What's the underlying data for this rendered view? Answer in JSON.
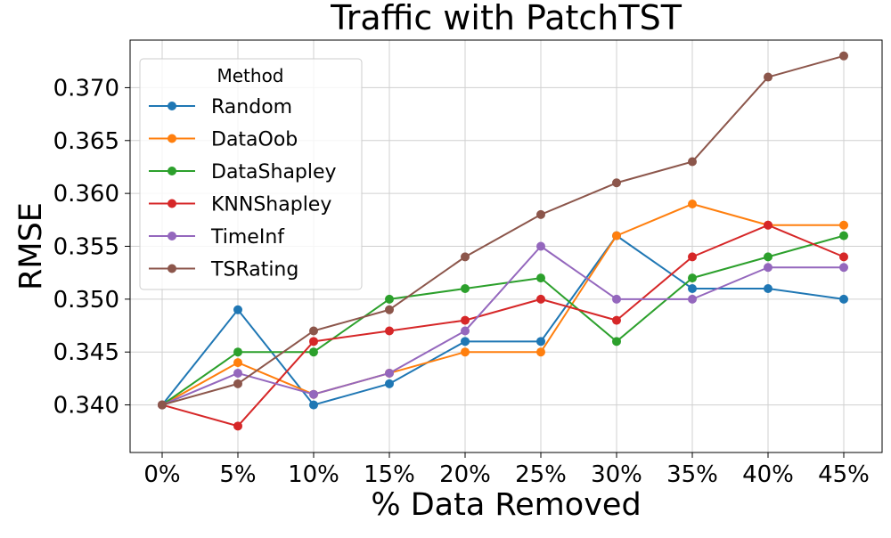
{
  "chart_data": {
    "type": "line",
    "title": "Traffic with PatchTST",
    "xlabel": "% Data Removed",
    "ylabel": "RMSE",
    "categories": [
      "0%",
      "5%",
      "10%",
      "15%",
      "20%",
      "25%",
      "30%",
      "35%",
      "40%",
      "45%"
    ],
    "ylim": [
      0.3355,
      0.3745
    ],
    "yticks": [
      0.34,
      0.345,
      0.35,
      0.355,
      0.36,
      0.365,
      0.37
    ],
    "ytick_labels": [
      "0.340",
      "0.345",
      "0.350",
      "0.355",
      "0.360",
      "0.365",
      "0.370"
    ],
    "grid": true,
    "legend": {
      "title": "Method",
      "placement": "top-left"
    },
    "series": [
      {
        "name": "Random",
        "color": "#1f77b4",
        "values": [
          0.34,
          0.349,
          0.34,
          0.342,
          0.346,
          0.346,
          0.356,
          0.351,
          0.351,
          0.35
        ]
      },
      {
        "name": "DataOob",
        "color": "#ff7f0e",
        "values": [
          0.34,
          0.344,
          0.341,
          0.343,
          0.345,
          0.345,
          0.356,
          0.359,
          0.357,
          0.357
        ]
      },
      {
        "name": "DataShapley",
        "color": "#2ca02c",
        "values": [
          0.34,
          0.345,
          0.345,
          0.35,
          0.351,
          0.352,
          0.346,
          0.352,
          0.354,
          0.356
        ]
      },
      {
        "name": "KNNShapley",
        "color": "#d62728",
        "values": [
          0.34,
          0.338,
          0.346,
          0.347,
          0.348,
          0.35,
          0.348,
          0.354,
          0.357,
          0.354
        ]
      },
      {
        "name": "TimeInf",
        "color": "#9467bd",
        "values": [
          0.34,
          0.343,
          0.341,
          0.343,
          0.347,
          0.355,
          0.35,
          0.35,
          0.353,
          0.353
        ]
      },
      {
        "name": "TSRating",
        "color": "#8c564b",
        "values": [
          0.34,
          0.342,
          0.347,
          0.349,
          0.354,
          0.358,
          0.361,
          0.363,
          0.371,
          0.373
        ]
      }
    ]
  }
}
